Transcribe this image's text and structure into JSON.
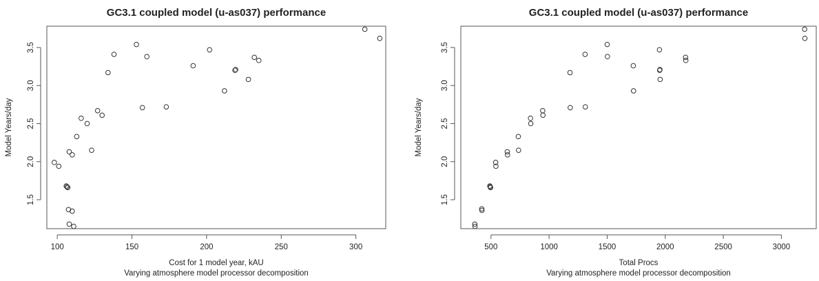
{
  "chart_data": [
    {
      "type": "scatter",
      "title": "GC3.1 coupled model (u-as037) performance",
      "xlabel": "Cost for 1 model year, kAU",
      "subtitle": "Varying atmosphere model processor decomposition",
      "ylabel": "Model Years/day",
      "xlim": [
        93,
        320
      ],
      "ylim": [
        1.12,
        3.78
      ],
      "xticks": [
        100,
        150,
        200,
        250,
        300
      ],
      "yticks": [
        1.5,
        2.0,
        2.5,
        3.0,
        3.5
      ],
      "xtick_labels": [
        "100",
        "150",
        "200",
        "250",
        "300"
      ],
      "ytick_labels": [
        "1.5",
        "2.0",
        "2.5",
        "3.0",
        "3.5"
      ],
      "points": [
        {
          "x": 98,
          "y": 1.99
        },
        {
          "x": 101,
          "y": 1.94
        },
        {
          "x": 106,
          "y": 1.68
        },
        {
          "x": 106.5,
          "y": 1.67
        },
        {
          "x": 107,
          "y": 1.66
        },
        {
          "x": 107.5,
          "y": 1.37
        },
        {
          "x": 110,
          "y": 1.35
        },
        {
          "x": 108,
          "y": 1.18
        },
        {
          "x": 111,
          "y": 1.15
        },
        {
          "x": 108,
          "y": 2.13
        },
        {
          "x": 110,
          "y": 2.09
        },
        {
          "x": 113,
          "y": 2.33
        },
        {
          "x": 116,
          "y": 2.57
        },
        {
          "x": 120,
          "y": 2.5
        },
        {
          "x": 123,
          "y": 2.15
        },
        {
          "x": 127,
          "y": 2.67
        },
        {
          "x": 130,
          "y": 2.61
        },
        {
          "x": 134,
          "y": 3.17
        },
        {
          "x": 138,
          "y": 3.41
        },
        {
          "x": 153,
          "y": 3.54
        },
        {
          "x": 157,
          "y": 2.71
        },
        {
          "x": 160,
          "y": 3.38
        },
        {
          "x": 173,
          "y": 2.72
        },
        {
          "x": 191,
          "y": 3.26
        },
        {
          "x": 202,
          "y": 3.47
        },
        {
          "x": 212,
          "y": 2.93
        },
        {
          "x": 219,
          "y": 3.2
        },
        {
          "x": 219.5,
          "y": 3.21
        },
        {
          "x": 228,
          "y": 3.08
        },
        {
          "x": 232,
          "y": 3.37
        },
        {
          "x": 235,
          "y": 3.33
        },
        {
          "x": 306,
          "y": 3.74
        },
        {
          "x": 316,
          "y": 3.62
        }
      ]
    },
    {
      "type": "scatter",
      "title": "GC3.1 coupled model (u-as037) performance",
      "xlabel": "Total Procs",
      "subtitle": "Varying atmosphere model processor decomposition",
      "ylabel": "Model Years/day",
      "xlim": [
        240,
        3300
      ],
      "ylim": [
        1.12,
        3.78
      ],
      "xticks": [
        500,
        1000,
        1500,
        2000,
        2500,
        3000
      ],
      "yticks": [
        1.5,
        2.0,
        2.5,
        3.0,
        3.5
      ],
      "xtick_labels": [
        "500",
        "1000",
        "1500",
        "2000",
        "2500",
        "3000"
      ],
      "ytick_labels": [
        "1.5",
        "2.0",
        "2.5",
        "3.0",
        "3.5"
      ],
      "points": [
        {
          "x": 360,
          "y": 1.18
        },
        {
          "x": 362,
          "y": 1.15
        },
        {
          "x": 420,
          "y": 1.38
        },
        {
          "x": 422,
          "y": 1.36
        },
        {
          "x": 490,
          "y": 1.68
        },
        {
          "x": 493,
          "y": 1.67
        },
        {
          "x": 496,
          "y": 1.66
        },
        {
          "x": 540,
          "y": 1.99
        },
        {
          "x": 542,
          "y": 1.94
        },
        {
          "x": 640,
          "y": 2.13
        },
        {
          "x": 642,
          "y": 2.09
        },
        {
          "x": 735,
          "y": 2.33
        },
        {
          "x": 737,
          "y": 2.15
        },
        {
          "x": 840,
          "y": 2.57
        },
        {
          "x": 842,
          "y": 2.5
        },
        {
          "x": 945,
          "y": 2.67
        },
        {
          "x": 947,
          "y": 2.61
        },
        {
          "x": 1180,
          "y": 3.17
        },
        {
          "x": 1182,
          "y": 2.71
        },
        {
          "x": 1310,
          "y": 3.41
        },
        {
          "x": 1312,
          "y": 2.72
        },
        {
          "x": 1500,
          "y": 3.54
        },
        {
          "x": 1502,
          "y": 3.38
        },
        {
          "x": 1725,
          "y": 3.26
        },
        {
          "x": 1727,
          "y": 2.93
        },
        {
          "x": 1950,
          "y": 3.47
        },
        {
          "x": 1952,
          "y": 3.2
        },
        {
          "x": 1954,
          "y": 3.21
        },
        {
          "x": 1956,
          "y": 3.08
        },
        {
          "x": 2175,
          "y": 3.37
        },
        {
          "x": 2177,
          "y": 3.33
        },
        {
          "x": 3200,
          "y": 3.74
        },
        {
          "x": 3202,
          "y": 3.62
        }
      ]
    }
  ]
}
